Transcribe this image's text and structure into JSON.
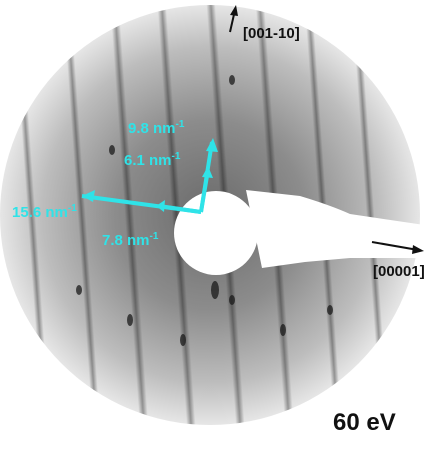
{
  "figure": {
    "energy": "60 eV",
    "directions": {
      "vertical": "[001-10]",
      "horizontal": "[00001]"
    },
    "spacings": {
      "s1": "9.8 nm",
      "s2": "6.1 nm",
      "s3": "15.6 nm",
      "s4": "7.8 nm",
      "unit_exp": "-1"
    },
    "colors": {
      "annotation": "#2fe3e8",
      "text": "#111111",
      "background": "#ffffff"
    }
  }
}
